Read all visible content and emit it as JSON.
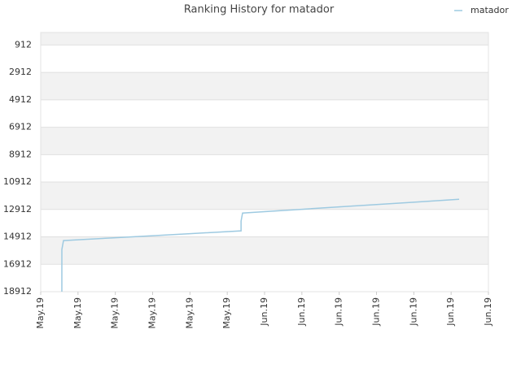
{
  "chart_data": {
    "type": "line",
    "title": "Ranking History for matador",
    "x": [
      0.567,
      0.567,
      0.611,
      1,
      2,
      3,
      4,
      5.37,
      5.37,
      5.41,
      6,
      7,
      8,
      9,
      10,
      11,
      11.215
    ],
    "series": [
      {
        "name": "matador",
        "color": "#9ecae1",
        "values": [
          18912,
          15835,
          15184,
          15125,
          14977,
          14829,
          14681,
          14474,
          13764,
          13173,
          13072,
          12900,
          12723,
          12551,
          12380,
          12202,
          12167
        ]
      }
    ],
    "xlim": [
      0,
      12
    ],
    "xticks": [
      {
        "value": 0,
        "label": "May.19"
      },
      {
        "value": 1,
        "label": "May.19"
      },
      {
        "value": 2,
        "label": "May.19"
      },
      {
        "value": 3,
        "label": "May.19"
      },
      {
        "value": 4,
        "label": "May.19"
      },
      {
        "value": 5,
        "label": "May.19"
      },
      {
        "value": 6,
        "label": "Jun.19"
      },
      {
        "value": 7,
        "label": "Jun.19"
      },
      {
        "value": 8,
        "label": "Jun.19"
      },
      {
        "value": 9,
        "label": "Jun.19"
      },
      {
        "value": 10,
        "label": "Jun.19"
      },
      {
        "value": 11,
        "label": "Jun.19"
      },
      {
        "value": 12,
        "label": "Jun.19"
      }
    ],
    "ylim": [
      18912,
      0
    ],
    "yticks": [
      912,
      2912,
      4912,
      6912,
      8912,
      10912,
      12912,
      14912,
      16912,
      18912
    ],
    "grid": true,
    "legend": "top-right"
  }
}
